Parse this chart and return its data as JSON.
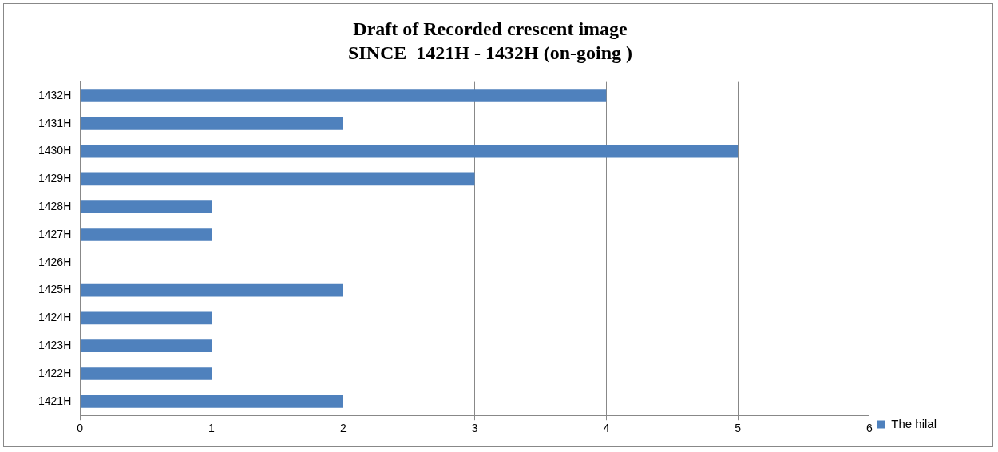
{
  "chart_data": {
    "type": "bar",
    "orientation": "horizontal",
    "title": "Draft of Recorded crescent image",
    "subtitle": "SINCE  1421H - 1432H (on-going )",
    "categories": [
      "1432H",
      "1431H",
      "1430H",
      "1429H",
      "1428H",
      "1427H",
      "1426H",
      "1425H",
      "1424H",
      "1423H",
      "1422H",
      "1421H"
    ],
    "series": [
      {
        "name": "The hilal",
        "color": "#4f81bd",
        "values": [
          4,
          2,
          5,
          3,
          1,
          1,
          0,
          2,
          1,
          1,
          1,
          2
        ]
      }
    ],
    "xlim": [
      0,
      6
    ],
    "xticks": [
      0,
      1,
      2,
      3,
      4,
      5,
      6
    ],
    "grid": "x",
    "legend": "right"
  }
}
